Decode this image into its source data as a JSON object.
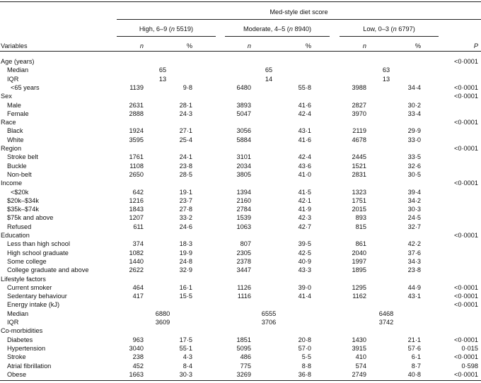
{
  "table": {
    "title": "Med-style diet score",
    "groups": [
      {
        "label": "High, 6–9 (",
        "n_label": "n",
        "n_value": " 5519)"
      },
      {
        "label": "Moderate, 4–5 (",
        "n_label": "n",
        "n_value": " 8940)"
      },
      {
        "label": "Low, 0–3 (",
        "n_label": "n",
        "n_value": " 6797)"
      }
    ],
    "col_variables": "Variables",
    "col_n": "n",
    "col_pct": "%",
    "col_p": "P",
    "rows": [
      {
        "label": "Age (years)",
        "indent": 0,
        "p": "<0·0001"
      },
      {
        "label": "Median",
        "indent": 1,
        "span": [
          "65",
          "65",
          "63"
        ]
      },
      {
        "label": "IQR",
        "indent": 1,
        "span": [
          "13",
          "14",
          "13"
        ]
      },
      {
        "label": "<65 years",
        "indent": 2,
        "v": [
          "1139",
          "9·8",
          "6480",
          "55·8",
          "3988",
          "34·4"
        ],
        "p": "<0·0001"
      },
      {
        "label": "Sex",
        "indent": 0,
        "p": "<0·0001"
      },
      {
        "label": "Male",
        "indent": 1,
        "v": [
          "2631",
          "28·1",
          "3893",
          "41·6",
          "2827",
          "30·2"
        ]
      },
      {
        "label": "Female",
        "indent": 1,
        "v": [
          "2888",
          "24·3",
          "5047",
          "42·4",
          "3970",
          "33·4"
        ]
      },
      {
        "label": "Race",
        "indent": 0,
        "p": "<0·0001"
      },
      {
        "label": "Black",
        "indent": 1,
        "v": [
          "1924",
          "27·1",
          "3056",
          "43·1",
          "2119",
          "29·9"
        ]
      },
      {
        "label": "White",
        "indent": 1,
        "v": [
          "3595",
          "25·4",
          "5884",
          "41·6",
          "4678",
          "33·0"
        ]
      },
      {
        "label": "Region",
        "indent": 0,
        "p": "<0·0001"
      },
      {
        "label": "Stroke belt",
        "indent": 1,
        "v": [
          "1761",
          "24·1",
          "3101",
          "42·4",
          "2445",
          "33·5"
        ]
      },
      {
        "label": "Buckle",
        "indent": 1,
        "v": [
          "1108",
          "23·8",
          "2034",
          "43·6",
          "1521",
          "32·6"
        ]
      },
      {
        "label": "Non-belt",
        "indent": 1,
        "v": [
          "2650",
          "28·5",
          "3805",
          "41·0",
          "2831",
          "30·5"
        ]
      },
      {
        "label": "Income",
        "indent": 0,
        "p": "<0·0001"
      },
      {
        "label": "<$20k",
        "indent": 2,
        "v": [
          "642",
          "19·1",
          "1394",
          "41·5",
          "1323",
          "39·4"
        ]
      },
      {
        "label": "$20k–$34k",
        "indent": 1,
        "v": [
          "1216",
          "23·7",
          "2160",
          "42·1",
          "1751",
          "34·2"
        ]
      },
      {
        "label": "$35k–$74k",
        "indent": 1,
        "v": [
          "1843",
          "27·8",
          "2784",
          "41·9",
          "2015",
          "30·3"
        ]
      },
      {
        "label": "$75k and above",
        "indent": 1,
        "v": [
          "1207",
          "33·2",
          "1539",
          "42·3",
          "893",
          "24·5"
        ]
      },
      {
        "label": "Refused",
        "indent": 1,
        "v": [
          "611",
          "24·6",
          "1063",
          "42·7",
          "815",
          "32·7"
        ]
      },
      {
        "label": "Education",
        "indent": 0,
        "p": "<0·0001"
      },
      {
        "label": "Less than high school",
        "indent": 1,
        "v": [
          "374",
          "18·3",
          "807",
          "39·5",
          "861",
          "42·2"
        ]
      },
      {
        "label": "High school graduate",
        "indent": 1,
        "v": [
          "1082",
          "19·9",
          "2305",
          "42·5",
          "2040",
          "37·6"
        ]
      },
      {
        "label": "Some college",
        "indent": 1,
        "v": [
          "1440",
          "24·8",
          "2378",
          "40·9",
          "1997",
          "34·3"
        ]
      },
      {
        "label": "College graduate and above",
        "indent": 1,
        "v": [
          "2622",
          "32·9",
          "3447",
          "43·3",
          "1895",
          "23·8"
        ]
      },
      {
        "label": "Lifestyle factors",
        "indent": 0
      },
      {
        "label": "Current smoker",
        "indent": 1,
        "v": [
          "464",
          "16·1",
          "1126",
          "39·0",
          "1295",
          "44·9"
        ],
        "p": "<0·0001"
      },
      {
        "label": "Sedentary behaviour",
        "indent": 1,
        "v": [
          "417",
          "15·5",
          "1116",
          "41·4",
          "1162",
          "43·1"
        ],
        "p": "<0·0001"
      },
      {
        "label": "Energy intake (kJ)",
        "indent": 1,
        "p": "<0·0001"
      },
      {
        "label": "Median",
        "indent": 1,
        "span": [
          "6880",
          "6555",
          "6468"
        ]
      },
      {
        "label": "IQR",
        "indent": 1,
        "span": [
          "3609",
          "3706",
          "3742"
        ]
      },
      {
        "label": "Co-morbidities",
        "indent": 0
      },
      {
        "label": "Diabetes",
        "indent": 1,
        "v": [
          "963",
          "17·5",
          "1851",
          "20·8",
          "1430",
          "21·1"
        ],
        "p": "<0·0001"
      },
      {
        "label": "Hypertension",
        "indent": 1,
        "v": [
          "3040",
          "55·1",
          "5095",
          "57·0",
          "3915",
          "57·6"
        ],
        "p": "0·015"
      },
      {
        "label": "Stroke",
        "indent": 1,
        "v": [
          "238",
          "4·3",
          "486",
          "5·5",
          "410",
          "6·1"
        ],
        "p": "<0·0001"
      },
      {
        "label": "Atrial fibrillation",
        "indent": 1,
        "v": [
          "452",
          "8·4",
          "775",
          "8·8",
          "574",
          "8·7"
        ],
        "p": "0·598"
      },
      {
        "label": "Obese",
        "indent": 1,
        "v": [
          "1663",
          "30·3",
          "3269",
          "36·8",
          "2749",
          "40·8"
        ],
        "p": "<0·0001"
      }
    ]
  }
}
